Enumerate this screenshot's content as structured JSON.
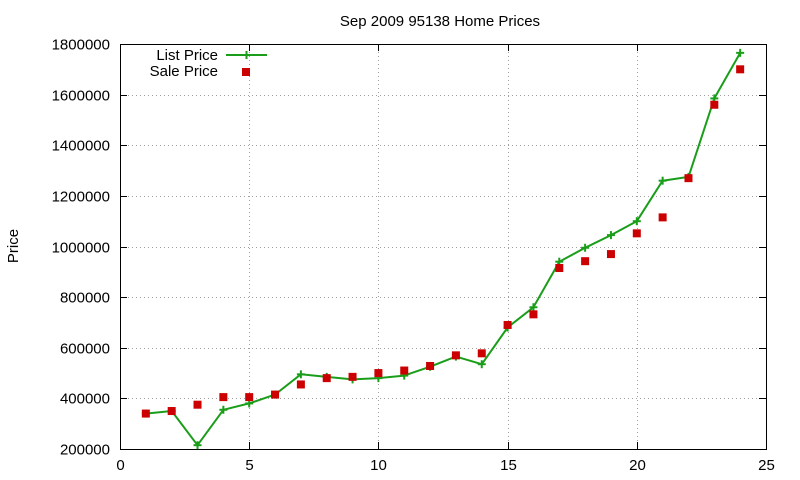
{
  "chart_data": {
    "type": "line",
    "title": "Sep 2009 95138 Home Prices",
    "xlabel": "",
    "ylabel": "Price",
    "xlim": [
      0,
      25
    ],
    "ylim": [
      200000,
      1800000
    ],
    "x_ticks": [
      0,
      5,
      10,
      15,
      20,
      25
    ],
    "y_ticks": [
      200000,
      400000,
      600000,
      800000,
      1000000,
      1200000,
      1400000,
      1600000,
      1800000
    ],
    "grid": true,
    "legend_position": "top-left",
    "series": [
      {
        "name": "List Price",
        "style": "line-with-plus-markers",
        "color": "#1a9e1a",
        "x": [
          1,
          2,
          3,
          4,
          5,
          6,
          7,
          8,
          9,
          10,
          11,
          12,
          13,
          14,
          15,
          16,
          17,
          18,
          19,
          20,
          21,
          22,
          23,
          24
        ],
        "values": [
          340000,
          350000,
          215000,
          355000,
          380000,
          415000,
          495000,
          485000,
          475000,
          480000,
          490000,
          525000,
          565000,
          535000,
          680000,
          760000,
          940000,
          995000,
          1045000,
          1100000,
          1260000,
          1275000,
          1585000,
          1765000
        ]
      },
      {
        "name": "Sale Price",
        "style": "square-markers",
        "color": "#cc0000",
        "x": [
          1,
          2,
          3,
          4,
          5,
          6,
          7,
          8,
          9,
          10,
          11,
          12,
          13,
          14,
          15,
          16,
          17,
          18,
          19,
          20,
          21,
          22,
          23,
          24
        ],
        "values": [
          340000,
          350000,
          375000,
          405000,
          405000,
          415000,
          455000,
          480000,
          485000,
          500000,
          510000,
          528000,
          570000,
          578000,
          690000,
          732000,
          915000,
          942000,
          970000,
          1052000,
          1115000,
          1270000,
          1560000,
          1700000
        ]
      }
    ]
  }
}
